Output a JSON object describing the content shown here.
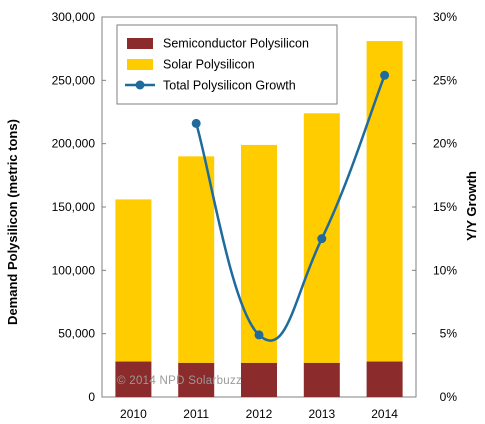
{
  "chart_data": {
    "type": "bar",
    "stacked": true,
    "categories": [
      "2010",
      "2011",
      "2012",
      "2013",
      "2014"
    ],
    "series": [
      {
        "name": "Semiconductor Polysilicon",
        "kind": "bar",
        "axis": "left",
        "color": "#8b2b2b",
        "values": [
          28000,
          27000,
          27000,
          27000,
          28000
        ]
      },
      {
        "name": "Solar Polysilicon",
        "kind": "bar",
        "axis": "left",
        "color": "#ffcc00",
        "values": [
          128000,
          163000,
          172000,
          197000,
          253000
        ]
      },
      {
        "name": "Total Polysilicon Growth",
        "kind": "line",
        "axis": "right",
        "color": "#1f6b9e",
        "values": [
          null,
          21.6,
          4.9,
          12.5,
          25.4
        ]
      }
    ],
    "ylabel": "Demand Polysilicon  (metric tons)",
    "y2label": "Y/Y Growth",
    "ylim": [
      0,
      300000
    ],
    "y2lim": [
      0,
      30
    ],
    "yticks": [
      "0",
      "50,000",
      "100,000",
      "150,000",
      "200,000",
      "250,000",
      "300,000"
    ],
    "y2ticks": [
      "0%",
      "5%",
      "10%",
      "15%",
      "20%",
      "25%",
      "30%"
    ],
    "legend_position": "top-left",
    "grid": false,
    "watermark": "© 2014  NPD  Solarbuzz"
  }
}
